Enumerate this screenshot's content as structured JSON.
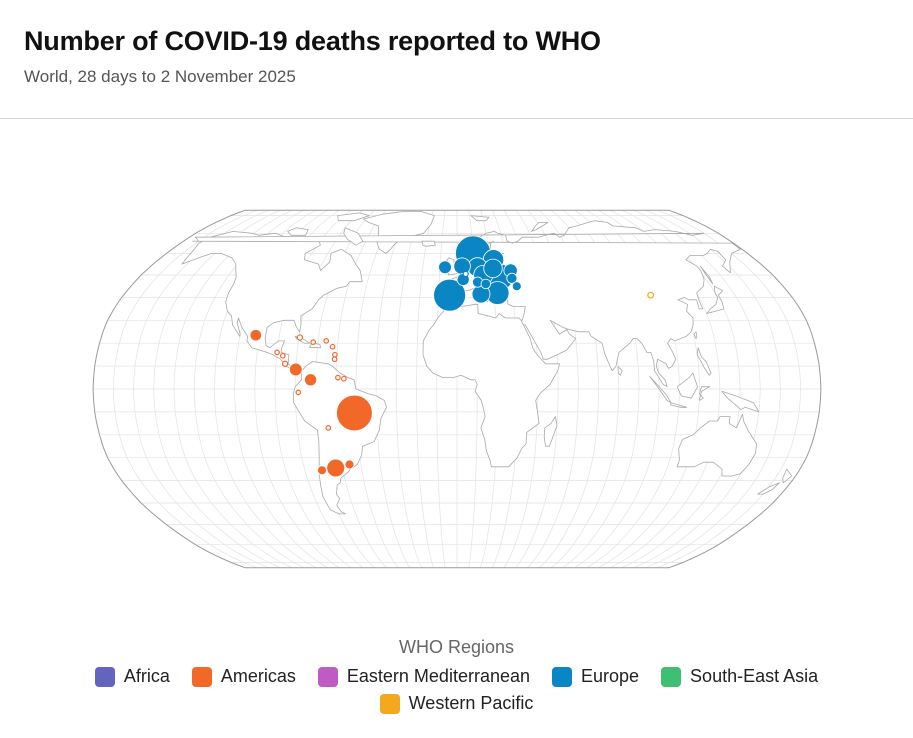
{
  "header": {
    "title": "Number of COVID-19 deaths reported to WHO",
    "subtitle": "World, 28 days to 2 November 2025"
  },
  "legend": {
    "title": "WHO Regions",
    "items": [
      {
        "label": "Africa",
        "color": "#6363c0"
      },
      {
        "label": "Americas",
        "color": "#f26829"
      },
      {
        "label": "Eastern Mediterranean",
        "color": "#c05bc4"
      },
      {
        "label": "Europe",
        "color": "#0b86c5"
      },
      {
        "label": "South-East Asia",
        "color": "#3fbf74"
      },
      {
        "label": "Western Pacific",
        "color": "#f4a81d"
      }
    ]
  },
  "chart_data": {
    "type": "bubble-map",
    "projection": "Robinson",
    "bubbles": [
      {
        "region": "Europe",
        "lat": 60,
        "lon": 10,
        "size": 5.5
      },
      {
        "region": "Europe",
        "lat": 57,
        "lon": 22,
        "size": 3.2
      },
      {
        "region": "Europe",
        "lat": 54,
        "lon": 3,
        "size": 2.6
      },
      {
        "region": "Europe",
        "lat": 53.5,
        "lon": 12,
        "size": 3.0
      },
      {
        "region": "Europe",
        "lat": 53,
        "lon": 21,
        "size": 2.9
      },
      {
        "region": "Europe",
        "lat": 52,
        "lon": 31,
        "size": 2.1
      },
      {
        "region": "Europe",
        "lat": 53.5,
        "lon": -7,
        "size": 2.0
      },
      {
        "region": "Europe",
        "lat": 50.5,
        "lon": 5,
        "size": 0.8
      },
      {
        "region": "Europe",
        "lat": 50,
        "lon": 15,
        "size": 3.0
      },
      {
        "region": "Europe",
        "lat": 49,
        "lon": 24,
        "size": 4.2
      },
      {
        "region": "Europe",
        "lat": 48.5,
        "lon": 31,
        "size": 1.6
      },
      {
        "region": "Europe",
        "lat": 48,
        "lon": 3.5,
        "size": 1.9
      },
      {
        "region": "Europe",
        "lat": 46.8,
        "lon": 11.5,
        "size": 1.6
      },
      {
        "region": "Europe",
        "lat": 46,
        "lon": 16,
        "size": 1.5
      },
      {
        "region": "Europe",
        "lat": 45,
        "lon": 33,
        "size": 1.4
      },
      {
        "region": "Europe",
        "lat": 41,
        "lon": -4,
        "size": 5.0
      },
      {
        "region": "Europe",
        "lat": 41.5,
        "lon": 13,
        "size": 2.8
      },
      {
        "region": "Europe",
        "lat": 42,
        "lon": 22,
        "size": 3.6
      },
      {
        "region": "Western Pacific",
        "lat": 41,
        "lon": 104.5,
        "size": 0.9
      },
      {
        "region": "Americas",
        "lat": 23.5,
        "lon": -102,
        "size": 1.8
      },
      {
        "region": "Americas",
        "lat": 22.5,
        "lon": -79.5,
        "size": 0.8
      },
      {
        "region": "Americas",
        "lat": 20.5,
        "lon": -72.5,
        "size": 0.7
      },
      {
        "region": "Americas",
        "lat": 21,
        "lon": -66,
        "size": 0.7
      },
      {
        "region": "Americas",
        "lat": 18.5,
        "lon": -62.5,
        "size": 0.7
      },
      {
        "region": "Americas",
        "lat": 15,
        "lon": -61,
        "size": 0.7
      },
      {
        "region": "Americas",
        "lat": 13,
        "lon": -61,
        "size": 0.7
      },
      {
        "region": "Americas",
        "lat": 16,
        "lon": -90,
        "size": 0.7
      },
      {
        "region": "Americas",
        "lat": 14.5,
        "lon": -87,
        "size": 0.7
      },
      {
        "region": "Americas",
        "lat": 11,
        "lon": -85.5,
        "size": 0.8
      },
      {
        "region": "Americas",
        "lat": 8.5,
        "lon": -80,
        "size": 2.0
      },
      {
        "region": "Americas",
        "lat": 4,
        "lon": -72.5,
        "size": 1.9
      },
      {
        "region": "Americas",
        "lat": 5,
        "lon": -59,
        "size": 0.7
      },
      {
        "region": "Americas",
        "lat": 4.5,
        "lon": -56,
        "size": 0.7
      },
      {
        "region": "Americas",
        "lat": -1.5,
        "lon": -78.5,
        "size": 0.7
      },
      {
        "region": "Americas",
        "lat": -10.5,
        "lon": -51,
        "size": 5.6
      },
      {
        "region": "Americas",
        "lat": -17,
        "lon": -64.5,
        "size": 0.7
      },
      {
        "region": "Americas",
        "lat": -33,
        "lon": -56,
        "size": 1.4
      },
      {
        "region": "Americas",
        "lat": -34.5,
        "lon": -63.5,
        "size": 2.8
      },
      {
        "region": "Americas",
        "lat": -35.5,
        "lon": -71,
        "size": 1.4
      }
    ]
  }
}
